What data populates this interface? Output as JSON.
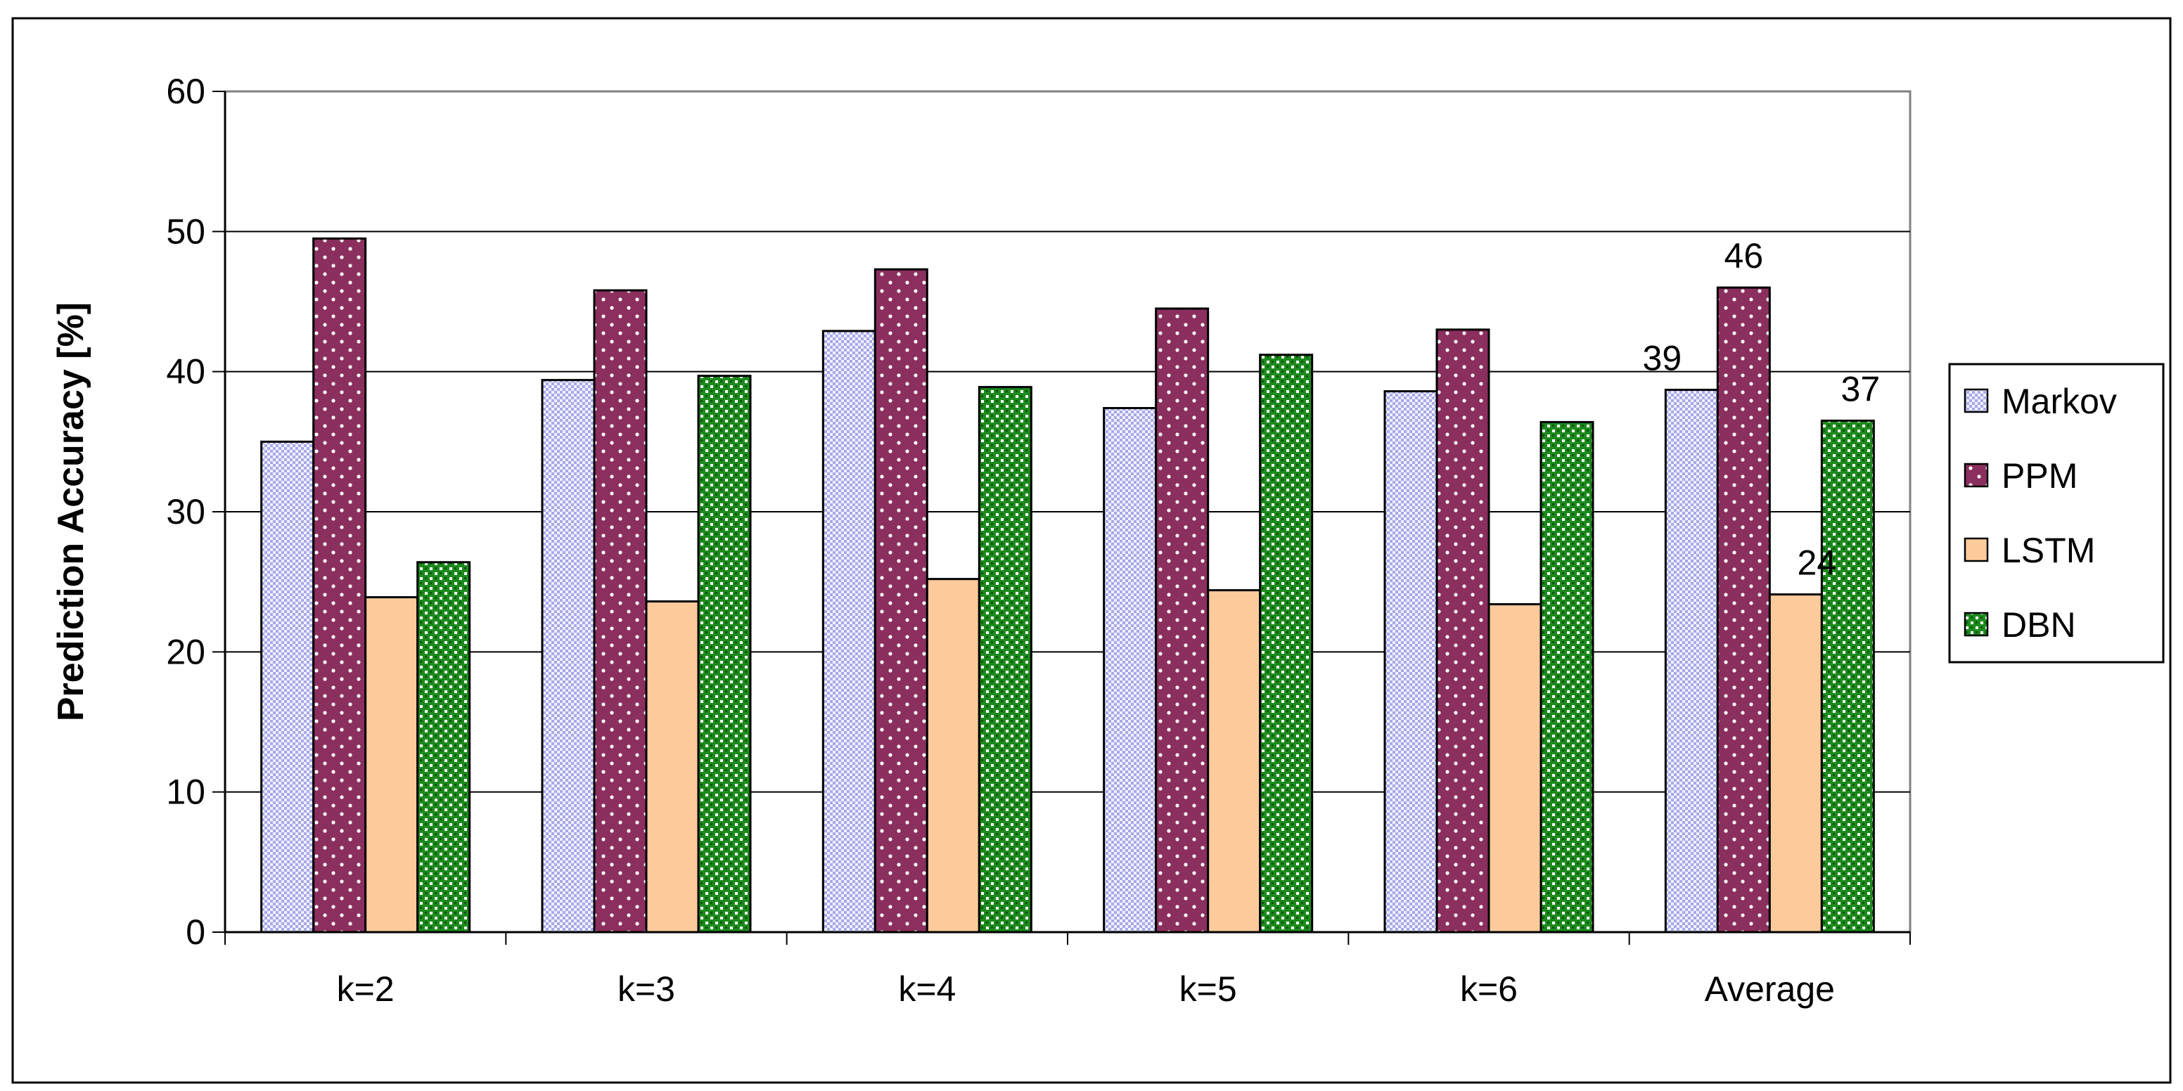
{
  "chart_data": {
    "type": "bar",
    "title": "",
    "xlabel": "",
    "ylabel": "Prediction Accuracy [%]",
    "ylim": [
      0,
      60
    ],
    "yticks": [
      0,
      10,
      20,
      30,
      40,
      50,
      60
    ],
    "grid": true,
    "legend_position": "right",
    "categories": [
      "k=2",
      "k=3",
      "k=4",
      "k=5",
      "k=6",
      "Average"
    ],
    "series": [
      {
        "name": "Markov",
        "color": "#c8c8f0",
        "pattern": "checker",
        "values": [
          35,
          39.4,
          42.9,
          37.4,
          38.6,
          38.7
        ]
      },
      {
        "name": "PPM",
        "color": "#8b2f5f",
        "pattern": "dots",
        "values": [
          49.5,
          45.8,
          47.3,
          44.5,
          43,
          46
        ]
      },
      {
        "name": "LSTM",
        "color": "#fdcb9b",
        "pattern": "solid",
        "values": [
          23.9,
          23.6,
          25.2,
          24.4,
          23.4,
          24.1
        ]
      },
      {
        "name": "DBN",
        "color": "#1d8a1d",
        "pattern": "grid",
        "values": [
          26.4,
          39.7,
          38.9,
          41.2,
          36.4,
          36.5
        ]
      }
    ],
    "data_labels": [
      {
        "category": "Average",
        "series": "Markov",
        "text": "39"
      },
      {
        "category": "Average",
        "series": "PPM",
        "text": "46"
      },
      {
        "category": "Average",
        "series": "LSTM",
        "text": "24"
      },
      {
        "category": "Average",
        "series": "DBN",
        "text": "37"
      }
    ]
  }
}
